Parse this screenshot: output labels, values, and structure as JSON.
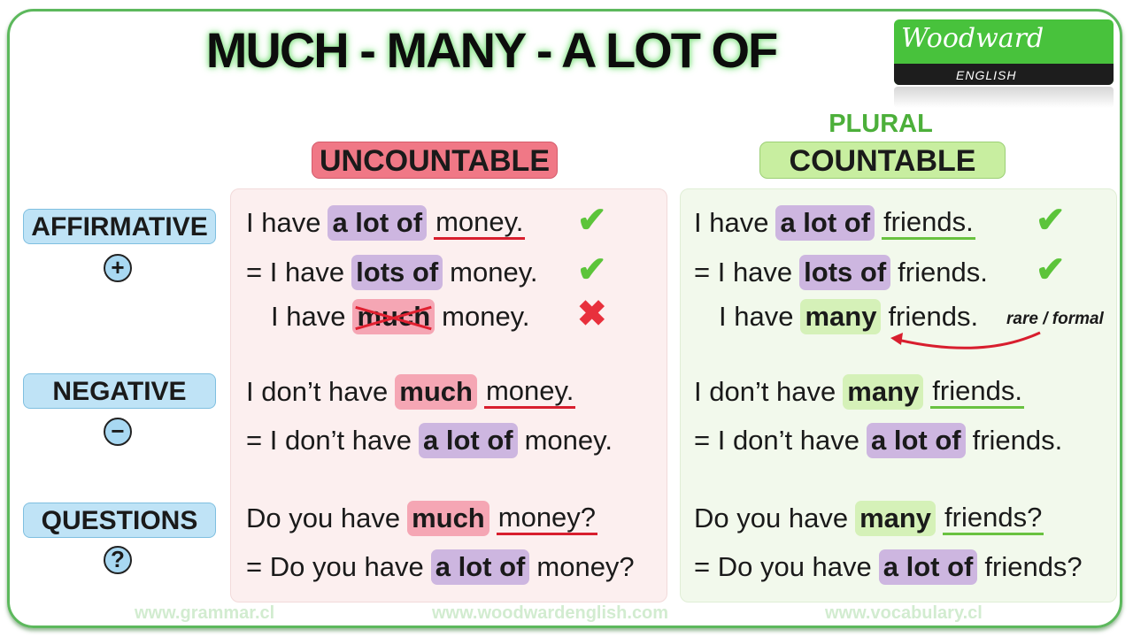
{
  "title": "MUCH - MANY - A LOT OF",
  "logo": {
    "name": "Woodward",
    "sub": "ENGLISH"
  },
  "columns": {
    "plural_label": "PLURAL",
    "uncountable": "UNCOUNTABLE",
    "countable": "COUNTABLE"
  },
  "rows": [
    {
      "label": "AFFIRMATIVE",
      "symbol": "+"
    },
    {
      "label": "NEGATIVE",
      "symbol": "−"
    },
    {
      "label": "QUESTIONS",
      "symbol": "?"
    }
  ],
  "colors": {
    "accent_green": "#5cb85c",
    "uncountable": "#f07886",
    "countable": "#c8eea0",
    "highlight_purple": "#cdb6e0",
    "row_label": "#bfe3f6"
  },
  "uncountable_lines": [
    {
      "segments": [
        {
          "text": "I have",
          "style": "plain"
        },
        {
          "text": "a lot of",
          "style": "hl-purple"
        },
        {
          "text": "money.",
          "style": "ul-red"
        }
      ],
      "mark": "check"
    },
    {
      "segments": [
        {
          "text": "= I have",
          "style": "plain"
        },
        {
          "text": "lots of",
          "style": "hl-purple"
        },
        {
          "text": "money.",
          "style": "plain"
        }
      ],
      "mark": "check"
    },
    {
      "segments": [
        {
          "text": "I have",
          "style": "plain"
        },
        {
          "text": "much",
          "style": "strike"
        },
        {
          "text": "money.",
          "style": "plain"
        }
      ],
      "mark": "cross"
    },
    {
      "segments": [
        {
          "text": "I don’t have",
          "style": "plain"
        },
        {
          "text": "much",
          "style": "hl-pink"
        },
        {
          "text": "money.",
          "style": "ul-red"
        }
      ]
    },
    {
      "segments": [
        {
          "text": "= I don’t have",
          "style": "plain"
        },
        {
          "text": "a lot of",
          "style": "hl-purple"
        },
        {
          "text": "money.",
          "style": "plain"
        }
      ]
    },
    {
      "segments": [
        {
          "text": "Do you have",
          "style": "plain"
        },
        {
          "text": "much",
          "style": "hl-pink"
        },
        {
          "text": "money?",
          "style": "ul-red"
        }
      ]
    },
    {
      "segments": [
        {
          "text": "= Do you have",
          "style": "plain"
        },
        {
          "text": "a lot of",
          "style": "hl-purple"
        },
        {
          "text": "money?",
          "style": "plain"
        }
      ]
    }
  ],
  "countable_lines": [
    {
      "segments": [
        {
          "text": "I have",
          "style": "plain"
        },
        {
          "text": "a lot of",
          "style": "hl-purple"
        },
        {
          "text": "friends.",
          "style": "ul-green"
        }
      ],
      "mark": "check"
    },
    {
      "segments": [
        {
          "text": "= I have",
          "style": "plain"
        },
        {
          "text": "lots of",
          "style": "hl-purple"
        },
        {
          "text": "friends.",
          "style": "plain"
        }
      ],
      "mark": "check"
    },
    {
      "segments": [
        {
          "text": "I have",
          "style": "plain"
        },
        {
          "text": "many",
          "style": "hl-green"
        },
        {
          "text": "friends.",
          "style": "plain"
        }
      ]
    },
    {
      "segments": [
        {
          "text": "I don’t have",
          "style": "plain"
        },
        {
          "text": "many",
          "style": "hl-green"
        },
        {
          "text": "friends.",
          "style": "ul-green"
        }
      ]
    },
    {
      "segments": [
        {
          "text": "= I don’t have",
          "style": "plain"
        },
        {
          "text": "a lot of",
          "style": "hl-purple"
        },
        {
          "text": "friends.",
          "style": "plain"
        }
      ]
    },
    {
      "segments": [
        {
          "text": "Do you have",
          "style": "plain"
        },
        {
          "text": "many",
          "style": "hl-green"
        },
        {
          "text": "friends?",
          "style": "ul-green"
        }
      ]
    },
    {
      "segments": [
        {
          "text": "= Do you have",
          "style": "plain"
        },
        {
          "text": "a lot of",
          "style": "hl-purple"
        },
        {
          "text": "friends?",
          "style": "plain"
        }
      ]
    }
  ],
  "marks": {
    "check": "✔",
    "cross": "✖"
  },
  "note": "rare / formal",
  "footer": [
    "www.grammar.cl",
    "www.woodwardenglish.com",
    "www.vocabulary.cl"
  ]
}
